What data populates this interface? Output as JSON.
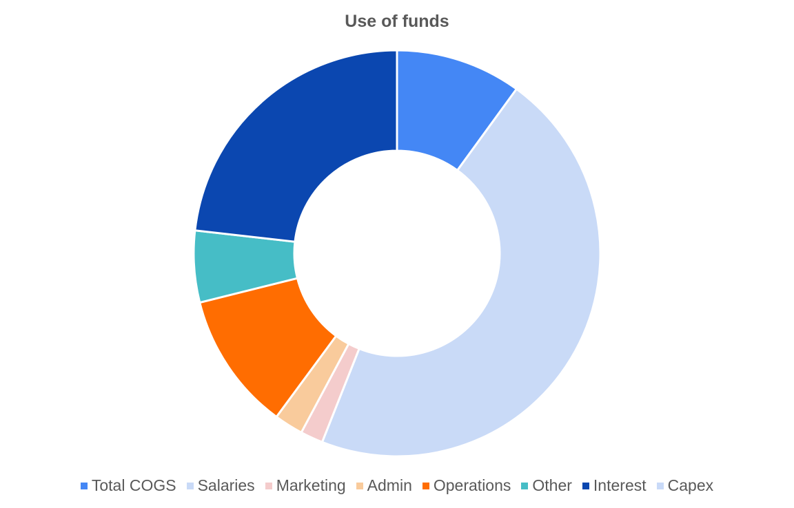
{
  "chart_data": {
    "type": "pie",
    "title": "Use of funds",
    "donut": true,
    "legend_position": "bottom",
    "categories": [
      "Total COGS",
      "Salaries",
      "Marketing",
      "Admin",
      "Operations",
      "Other",
      "Interest",
      "Capex"
    ],
    "values": [
      10,
      46,
      1.8,
      2.3,
      11,
      5.7,
      23.2,
      0
    ],
    "colors": [
      "#4487F5",
      "#C9DAF7",
      "#F4CCCC",
      "#F9CB9C",
      "#FF6D01",
      "#46BDC6",
      "#0B47B0",
      "#C9DAF8"
    ]
  }
}
